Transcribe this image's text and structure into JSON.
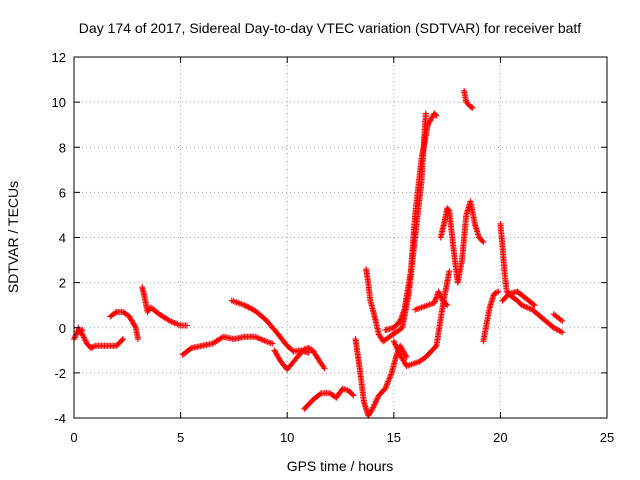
{
  "chart_data": {
    "type": "scatter",
    "title": "Day 174 of 2017, Sidereal Day-to-day VTEC variation (SDTVAR) for receiver batf",
    "xlabel": "GPS time / hours",
    "ylabel": "SDTVAR / TECUs",
    "xlim": [
      0,
      25
    ],
    "ylim": [
      -4,
      12
    ],
    "xticks": [
      0,
      5,
      10,
      15,
      20,
      25
    ],
    "yticks": [
      -4,
      -2,
      0,
      2,
      4,
      6,
      8,
      10,
      12
    ],
    "xtick_labels": [
      "0",
      "5",
      "10",
      "15",
      "20",
      "25"
    ],
    "ytick_labels": [
      "-4",
      "-2",
      "0",
      "2",
      "4",
      "6",
      "8",
      "10",
      "12"
    ],
    "grid": true,
    "marker": "+",
    "color": "#ff0000",
    "series": [
      {
        "name": "seg-1",
        "x": [
          0.0,
          0.2,
          0.4,
          0.6,
          0.8,
          1.0,
          1.5,
          2.0,
          2.3
        ],
        "y": [
          -0.5,
          -0.1,
          -0.3,
          -0.7,
          -0.9,
          -0.8,
          -0.8,
          -0.8,
          -0.5
        ]
      },
      {
        "name": "seg-2",
        "x": [
          0.2,
          0.3,
          0.4
        ],
        "y": [
          0.0,
          -0.2,
          -0.1
        ]
      },
      {
        "name": "seg-3",
        "x": [
          1.7,
          2.0,
          2.3,
          2.6,
          2.9,
          3.0
        ],
        "y": [
          0.5,
          0.7,
          0.7,
          0.5,
          0.0,
          -0.5
        ]
      },
      {
        "name": "seg-4",
        "x": [
          3.2,
          3.3,
          3.45,
          3.6,
          4.0,
          4.5,
          5.0,
          5.3
        ],
        "y": [
          1.8,
          1.4,
          0.7,
          0.9,
          0.6,
          0.3,
          0.1,
          0.1
        ]
      },
      {
        "name": "seg-5",
        "x": [
          5.1,
          5.5,
          6.0,
          6.5,
          7.0,
          7.5,
          8.0,
          8.5,
          9.0,
          9.3
        ],
        "y": [
          -1.2,
          -0.9,
          -0.8,
          -0.7,
          -0.4,
          -0.5,
          -0.4,
          -0.4,
          -0.6,
          -0.7
        ]
      },
      {
        "name": "seg-6",
        "x": [
          9.4,
          9.7,
          10.0,
          10.3,
          10.6,
          10.8,
          11.0,
          11.2,
          11.4,
          11.6,
          11.75
        ],
        "y": [
          -1.0,
          -1.5,
          -1.85,
          -1.5,
          -1.15,
          -0.95,
          -0.9,
          -1.0,
          -1.3,
          -1.6,
          -1.8
        ]
      },
      {
        "name": "seg-7",
        "x": [
          7.4,
          8.0,
          8.5,
          9.0,
          9.5,
          10.0,
          10.3,
          10.6,
          11.0
        ],
        "y": [
          1.2,
          1.0,
          0.75,
          0.35,
          -0.2,
          -0.8,
          -1.05,
          -1.0,
          -1.1
        ]
      },
      {
        "name": "seg-8",
        "x": [
          10.8,
          11.2,
          11.6,
          12.0,
          12.3,
          12.6,
          12.9,
          13.1
        ],
        "y": [
          -3.6,
          -3.2,
          -2.9,
          -2.9,
          -3.1,
          -2.7,
          -2.8,
          -3.0
        ]
      },
      {
        "name": "seg-9",
        "x": [
          13.2,
          13.4,
          13.6,
          13.8,
          14.0,
          14.3,
          14.6,
          14.9,
          15.1,
          15.3,
          15.6
        ],
        "y": [
          -0.5,
          -1.8,
          -3.3,
          -3.9,
          -3.6,
          -3.0,
          -2.7,
          -2.0,
          -1.3,
          -0.8,
          -1.3
        ]
      },
      {
        "name": "seg-10",
        "x": [
          13.7,
          13.8,
          13.9,
          14.1,
          14.3,
          14.5,
          14.8,
          15.1,
          15.4,
          15.7,
          16.0,
          16.3,
          16.5
        ],
        "y": [
          2.6,
          2.0,
          1.2,
          0.5,
          -0.3,
          -0.6,
          -0.4,
          -0.2,
          0.0,
          1.5,
          4.0,
          6.5,
          9.5
        ]
      },
      {
        "name": "seg-11",
        "x": [
          14.6,
          15.0,
          15.3,
          15.5,
          15.8,
          16.0,
          16.3,
          16.6,
          16.9,
          17.0
        ],
        "y": [
          -0.1,
          0.0,
          0.3,
          0.8,
          2.5,
          5.0,
          7.5,
          9.0,
          9.5,
          9.4
        ]
      },
      {
        "name": "seg-12",
        "x": [
          15.0,
          15.3,
          15.6,
          15.9,
          16.2,
          16.5,
          16.8,
          17.0,
          17.3,
          17.6
        ],
        "y": [
          -0.6,
          -1.2,
          -1.7,
          -1.6,
          -1.5,
          -1.3,
          -1.0,
          -0.8,
          1.0,
          2.5
        ]
      },
      {
        "name": "seg-13",
        "x": [
          16.0,
          16.3,
          16.6,
          16.9,
          17.1,
          17.3,
          17.5
        ],
        "y": [
          0.8,
          0.9,
          1.0,
          1.1,
          1.6,
          1.2,
          1.0
        ]
      },
      {
        "name": "seg-14",
        "x": [
          17.2,
          17.4,
          17.5,
          17.6,
          17.8,
          18.0,
          18.2,
          18.4,
          18.6,
          18.8,
          19.0,
          19.2
        ],
        "y": [
          4.0,
          4.8,
          5.3,
          5.2,
          3.5,
          2.0,
          3.0,
          5.0,
          5.6,
          4.6,
          4.0,
          3.8
        ]
      },
      {
        "name": "seg-15",
        "x": [
          18.3,
          18.4,
          18.5,
          18.6,
          18.7
        ],
        "y": [
          10.5,
          10.0,
          9.9,
          9.8,
          9.75
        ]
      },
      {
        "name": "seg-16",
        "x": [
          19.2,
          19.3,
          19.4,
          19.5,
          19.7,
          19.9
        ],
        "y": [
          -0.6,
          -0.1,
          0.4,
          0.9,
          1.5,
          1.6
        ]
      },
      {
        "name": "seg-17",
        "x": [
          20.0,
          20.1,
          20.2,
          20.3,
          20.5,
          20.8,
          21.0,
          21.5,
          22.0,
          22.5,
          22.9
        ],
        "y": [
          4.6,
          3.6,
          2.4,
          1.6,
          1.4,
          1.2,
          1.0,
          0.8,
          0.4,
          0.0,
          -0.2
        ]
      },
      {
        "name": "seg-18",
        "x": [
          20.1,
          20.4,
          20.8,
          21.2,
          21.6
        ],
        "y": [
          1.2,
          1.5,
          1.6,
          1.3,
          1.0
        ]
      },
      {
        "name": "seg-19",
        "x": [
          22.5,
          22.7,
          22.9
        ],
        "y": [
          0.6,
          0.45,
          0.3
        ]
      }
    ]
  }
}
